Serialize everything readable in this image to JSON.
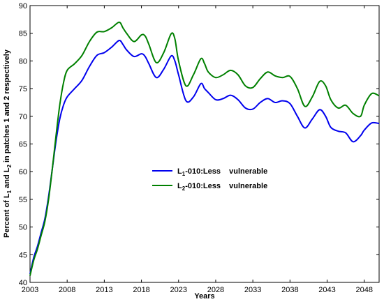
{
  "chart_data": {
    "type": "line",
    "xlabel": "Years",
    "ylabel_parts": [
      "Percent of L",
      "1",
      " and L",
      "2",
      " in patches 1 and 2 respectively"
    ],
    "xlim": [
      2003,
      2050
    ],
    "ylim": [
      40,
      90
    ],
    "xticks": [
      2003,
      2008,
      2013,
      2018,
      2023,
      2028,
      2033,
      2038,
      2043,
      2048
    ],
    "yticks": [
      40,
      45,
      50,
      55,
      60,
      65,
      70,
      75,
      80,
      85,
      90
    ],
    "grid": false,
    "legend_placement": "center",
    "series": [
      {
        "name_parts": [
          "L",
          "1",
          "-010:Less    vulnerable"
        ],
        "color": "#0000ee",
        "x": [
          2003.0,
          2003.5,
          2004.0,
          2004.5,
          2005.0,
          2005.5,
          2006.0,
          2006.5,
          2007.0,
          2007.5,
          2008.0,
          2009.0,
          2010.0,
          2011.0,
          2012.0,
          2013.0,
          2014.0,
          2015.0,
          2015.5,
          2016.0,
          2017.0,
          2018.0,
          2018.5,
          2019.0,
          2020.0,
          2021.0,
          2022.0,
          2022.5,
          2023.0,
          2024.0,
          2025.0,
          2026.0,
          2026.5,
          2027.0,
          2028.0,
          2029.0,
          2030.0,
          2031.0,
          2032.0,
          2033.0,
          2034.0,
          2035.0,
          2036.0,
          2037.0,
          2038.0,
          2039.0,
          2040.0,
          2041.0,
          2042.0,
          2042.8,
          2043.5,
          2044.5,
          2045.5,
          2046.5,
          2047.5,
          2048.0,
          2049.0,
          2050.0
        ],
        "y": [
          41.5,
          44.5,
          46.5,
          49.0,
          51.5,
          55.5,
          60.5,
          65.5,
          69.5,
          72.0,
          73.5,
          75.0,
          76.5,
          79.0,
          81.0,
          81.5,
          82.5,
          83.7,
          83.0,
          82.0,
          80.8,
          81.3,
          80.8,
          79.5,
          77.0,
          78.5,
          80.9,
          80.0,
          77.5,
          72.8,
          73.5,
          75.9,
          75.0,
          74.3,
          73.0,
          73.2,
          73.8,
          73.0,
          71.5,
          71.3,
          72.5,
          73.2,
          72.5,
          72.8,
          72.3,
          70.0,
          67.9,
          69.5,
          71.2,
          70.0,
          68.0,
          67.3,
          67.0,
          65.4,
          66.5,
          67.5,
          68.8,
          68.7
        ]
      },
      {
        "name_parts": [
          "L",
          "2",
          "-010:Less    vulnerable"
        ],
        "color": "#008000",
        "x": [
          2003.0,
          2003.5,
          2004.0,
          2004.5,
          2005.0,
          2005.5,
          2006.0,
          2006.5,
          2007.0,
          2007.5,
          2008.0,
          2009.0,
          2010.0,
          2011.0,
          2012.0,
          2013.0,
          2014.0,
          2015.0,
          2015.5,
          2016.0,
          2017.0,
          2018.0,
          2018.5,
          2019.0,
          2020.0,
          2021.0,
          2022.0,
          2022.5,
          2023.0,
          2024.0,
          2025.0,
          2026.0,
          2026.5,
          2027.0,
          2028.0,
          2029.0,
          2030.0,
          2031.0,
          2032.0,
          2033.0,
          2034.0,
          2035.0,
          2036.0,
          2037.0,
          2038.0,
          2039.0,
          2040.0,
          2041.0,
          2042.0,
          2042.8,
          2043.5,
          2044.5,
          2045.5,
          2046.5,
          2047.5,
          2048.0,
          2049.0,
          2050.0
        ],
        "y": [
          41.2,
          44.0,
          46.0,
          48.5,
          51.0,
          55.0,
          60.5,
          66.5,
          72.0,
          76.0,
          78.3,
          79.5,
          81.0,
          83.5,
          85.2,
          85.3,
          86.0,
          87.0,
          86.0,
          85.0,
          83.5,
          84.7,
          84.5,
          83.0,
          79.7,
          81.5,
          84.9,
          84.0,
          80.0,
          75.5,
          77.5,
          80.4,
          79.5,
          78.0,
          77.0,
          77.5,
          78.3,
          77.5,
          75.5,
          75.2,
          76.8,
          78.0,
          77.3,
          77.0,
          77.2,
          75.0,
          71.8,
          73.5,
          76.3,
          75.5,
          73.0,
          71.5,
          72.0,
          70.5,
          70.0,
          72.0,
          74.1,
          73.7
        ]
      }
    ]
  }
}
